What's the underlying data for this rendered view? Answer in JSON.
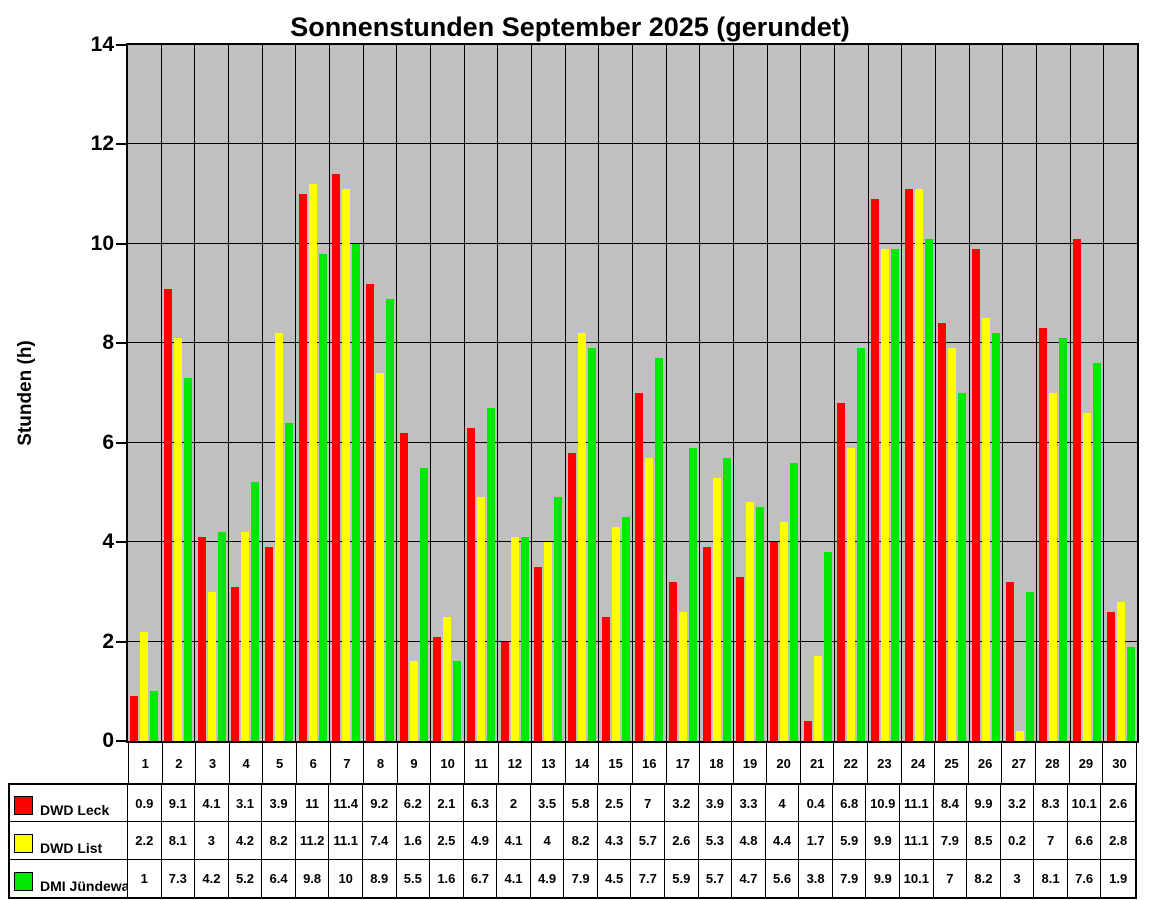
{
  "title": "Sonnenstunden September 2025 (gerundet)",
  "chart_data": {
    "type": "bar",
    "title": "Sonnenstunden September 2025 (gerundet)",
    "xlabel": "",
    "ylabel": "Stunden (h)",
    "ylim": [
      0,
      14
    ],
    "ytick_step": 2,
    "grid": true,
    "plot_bg": "#C0C0C0",
    "legend_position": "table-left",
    "categories": [
      "1",
      "2",
      "3",
      "4",
      "5",
      "6",
      "7",
      "8",
      "9",
      "10",
      "11",
      "12",
      "13",
      "14",
      "15",
      "16",
      "17",
      "18",
      "19",
      "20",
      "21",
      "22",
      "23",
      "24",
      "25",
      "26",
      "27",
      "28",
      "29",
      "30"
    ],
    "series": [
      {
        "name": "DWD Leck",
        "color": "#FF0000",
        "values": [
          0.9,
          9.1,
          4.1,
          3.1,
          3.9,
          11,
          11.4,
          9.2,
          6.2,
          2.1,
          6.3,
          2,
          3.5,
          5.8,
          2.5,
          7,
          3.2,
          3.9,
          3.3,
          4,
          0.4,
          6.8,
          10.9,
          11.1,
          8.4,
          9.9,
          3.2,
          8.3,
          10.1,
          2.6
        ]
      },
      {
        "name": "DWD List",
        "color": "#FFFF00",
        "values": [
          2.2,
          8.1,
          3,
          4.2,
          8.2,
          11.2,
          11.1,
          7.4,
          1.6,
          2.5,
          4.9,
          4.1,
          4,
          8.2,
          4.3,
          5.7,
          2.6,
          5.3,
          4.8,
          4.4,
          1.7,
          5.9,
          9.9,
          11.1,
          7.9,
          8.5,
          0.2,
          7,
          6.6,
          2.8
        ]
      },
      {
        "name": "DMI Jündewatt",
        "color": "#00E800",
        "values": [
          1,
          7.3,
          4.2,
          5.2,
          6.4,
          9.8,
          10,
          8.9,
          5.5,
          1.6,
          6.7,
          4.1,
          4.9,
          7.9,
          4.5,
          7.7,
          5.9,
          5.7,
          4.7,
          5.6,
          3.8,
          7.9,
          9.9,
          10.1,
          7,
          8.2,
          3,
          8.1,
          7.6,
          1.9
        ]
      }
    ]
  }
}
